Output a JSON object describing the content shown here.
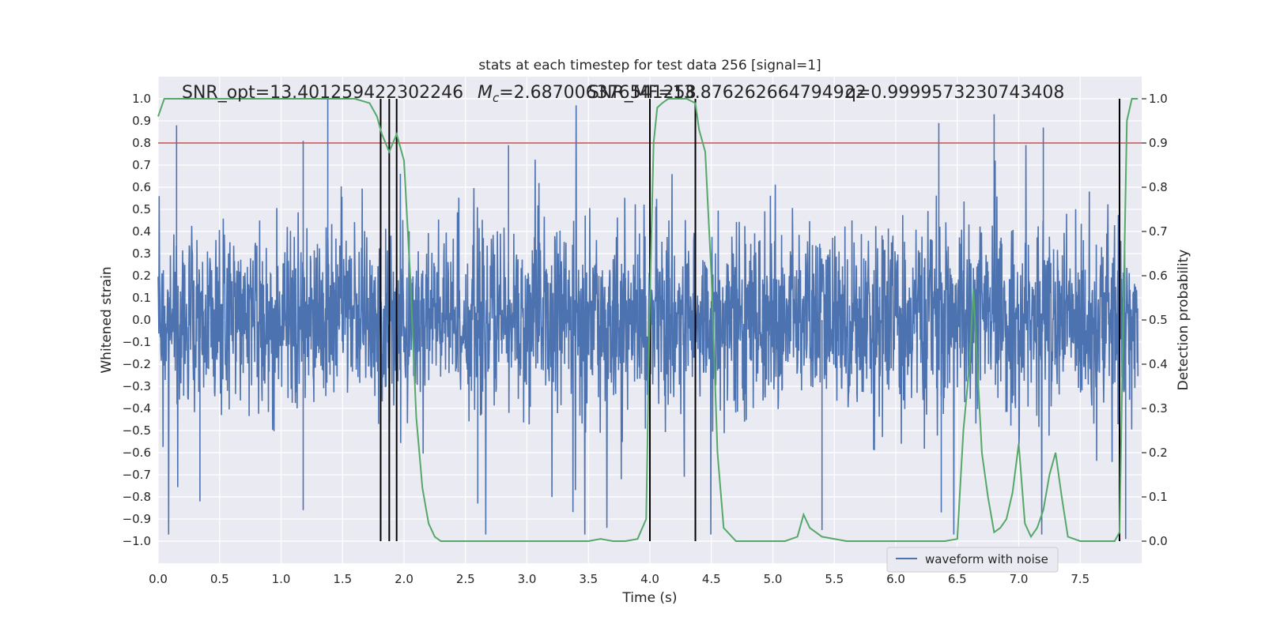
{
  "chart_data": {
    "type": "line",
    "title": "stats at each timestep for test data 256 [signal=1]",
    "xlabel": "Time (s)",
    "ylabel": "Whitened strain",
    "y2label": "Detection probability",
    "xlim": [
      0.0,
      8.0
    ],
    "ylim": [
      -1.1,
      1.1
    ],
    "y2lim": [
      -0.05,
      1.05
    ],
    "grid": true,
    "x_ticks": [
      "0.0",
      "0.5",
      "1.0",
      "1.5",
      "2.0",
      "2.5",
      "3.0",
      "3.5",
      "4.0",
      "4.5",
      "5.0",
      "5.5",
      "6.0",
      "6.5",
      "7.0",
      "7.5"
    ],
    "y_ticks": [
      "1.0",
      "0.9",
      "0.8",
      "0.7",
      "0.6",
      "0.5",
      "0.4",
      "0.3",
      "0.2",
      "0.1",
      "0.0",
      "−0.1",
      "−0.2",
      "−0.3",
      "−0.4",
      "−0.5",
      "−0.6",
      "−0.7",
      "−0.8",
      "−0.9",
      "−1.0"
    ],
    "y2_ticks": [
      "1.0",
      "0.9",
      "0.8",
      "0.7",
      "0.6",
      "0.5",
      "0.4",
      "0.3",
      "0.2",
      "0.1",
      "0.0"
    ],
    "annotations": {
      "snr_opt": "SNR_opt=13.401259422302246",
      "mc_prefix": "M",
      "mc_sub": "c",
      "mc_value": "=2.687006376541258",
      "snr_mf": "SNR_MF=13.876262664794922",
      "q": "q=0.9999573230743408"
    },
    "legend": {
      "label": "waveform with noise",
      "placement": "bottom-right"
    },
    "threshold": {
      "y2": 0.9,
      "color": "#c44e52"
    },
    "event_lines_x": [
      1.81,
      1.88,
      1.94,
      4.0,
      4.37,
      7.82
    ],
    "colors": {
      "waveform": "#4c72b0",
      "probability": "#55a868",
      "threshold": "#c44e52",
      "event": "#000000",
      "background": "#eaeaf2",
      "grid": "#ffffff"
    },
    "series": [
      {
        "name": "waveform with noise",
        "axis": "left",
        "description_values": "dense noisy whitened strain, mostly within ±0.4 with spikes up to about ±0.9",
        "envelope_peaks": [
          {
            "x": 0.15,
            "y": 0.88
          },
          {
            "x": 1.38,
            "y": 1.0
          },
          {
            "x": 1.18,
            "y": 0.81
          },
          {
            "x": 2.85,
            "y": 0.79
          },
          {
            "x": 6.35,
            "y": 0.89
          },
          {
            "x": 6.8,
            "y": 0.93
          },
          {
            "x": 7.2,
            "y": 0.87
          },
          {
            "x": 1.18,
            "y": -0.86
          },
          {
            "x": 0.34,
            "y": -0.82
          },
          {
            "x": 2.6,
            "y": -0.83
          },
          {
            "x": 6.37,
            "y": -0.87
          },
          {
            "x": 5.4,
            "y": -0.95
          },
          {
            "x": 7.87,
            "y": -0.99
          }
        ]
      },
      {
        "name": "",
        "axis": "right",
        "x": [
          0.0,
          0.05,
          0.1,
          0.2,
          0.4,
          0.6,
          0.8,
          1.0,
          1.2,
          1.4,
          1.6,
          1.72,
          1.78,
          1.82,
          1.88,
          1.94,
          2.0,
          2.05,
          2.1,
          2.15,
          2.2,
          2.25,
          2.3,
          2.4,
          2.6,
          2.8,
          3.0,
          3.2,
          3.4,
          3.5,
          3.6,
          3.7,
          3.8,
          3.9,
          3.97,
          4.0,
          4.03,
          4.06,
          4.1,
          4.15,
          4.2,
          4.3,
          4.37,
          4.4,
          4.45,
          4.5,
          4.55,
          4.6,
          4.7,
          4.8,
          5.0,
          5.1,
          5.2,
          5.25,
          5.3,
          5.4,
          5.6,
          5.8,
          6.0,
          6.2,
          6.4,
          6.5,
          6.55,
          6.6,
          6.63,
          6.7,
          6.75,
          6.8,
          6.85,
          6.9,
          6.95,
          7.0,
          7.05,
          7.1,
          7.15,
          7.2,
          7.25,
          7.3,
          7.35,
          7.4,
          7.45,
          7.5,
          7.6,
          7.7,
          7.78,
          7.82,
          7.85,
          7.88,
          7.92,
          7.97
        ],
        "values": [
          0.96,
          1.0,
          1.0,
          1.0,
          1.0,
          1.0,
          1.0,
          1.0,
          1.0,
          1.0,
          1.0,
          0.99,
          0.96,
          0.92,
          0.88,
          0.92,
          0.86,
          0.6,
          0.28,
          0.12,
          0.04,
          0.01,
          0.0,
          0.0,
          0.0,
          0.0,
          0.0,
          0.0,
          0.0,
          0.0,
          0.005,
          0.0,
          0.0,
          0.005,
          0.05,
          0.55,
          0.9,
          0.98,
          0.99,
          1.0,
          1.0,
          1.0,
          0.99,
          0.93,
          0.88,
          0.6,
          0.2,
          0.03,
          0.0,
          0.0,
          0.0,
          0.0,
          0.01,
          0.06,
          0.03,
          0.01,
          0.0,
          0.0,
          0.0,
          0.0,
          0.0,
          0.005,
          0.25,
          0.4,
          0.57,
          0.2,
          0.1,
          0.02,
          0.03,
          0.05,
          0.11,
          0.22,
          0.04,
          0.01,
          0.03,
          0.07,
          0.15,
          0.2,
          0.1,
          0.01,
          0.005,
          0.0,
          0.0,
          0.0,
          0.0,
          0.02,
          0.5,
          0.95,
          1.0,
          1.0
        ],
        "color": "#55a868"
      }
    ]
  }
}
